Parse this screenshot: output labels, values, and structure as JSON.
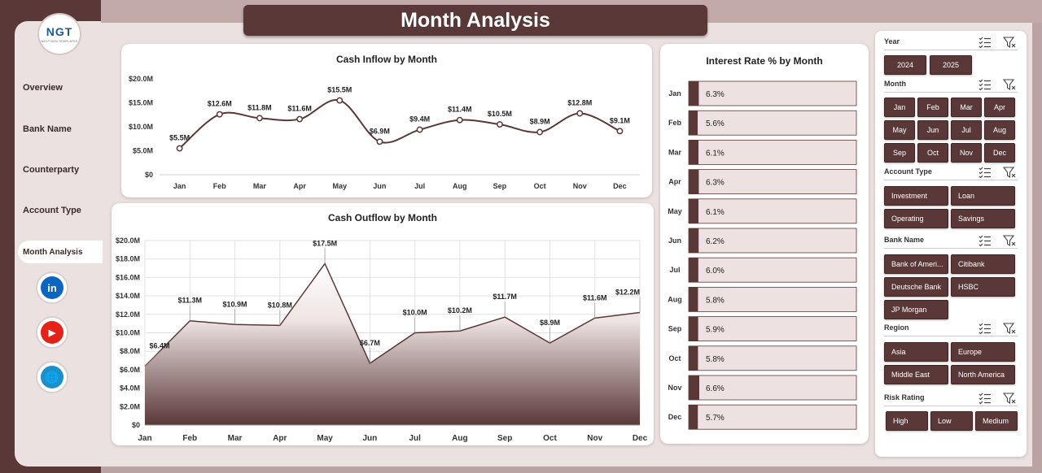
{
  "page": {
    "title": "Month Analysis"
  },
  "logo": {
    "text": "NGT",
    "subtext": "NEXT GEN TEMPLATES"
  },
  "sidebar": {
    "items": [
      {
        "label": "Overview"
      },
      {
        "label": "Bank Name"
      },
      {
        "label": "Counterparty"
      },
      {
        "label": "Account Type"
      }
    ],
    "active": "Month Analysis",
    "social": [
      {
        "icon": "linkedin-icon",
        "text": "in"
      },
      {
        "icon": "youtube-icon",
        "text": "▶"
      },
      {
        "icon": "globe-icon",
        "text": "🌐"
      }
    ]
  },
  "chart_data": [
    {
      "type": "line",
      "title": "Cash Inflow by Month",
      "categories": [
        "Jan",
        "Feb",
        "Mar",
        "Apr",
        "May",
        "Jun",
        "Jul",
        "Aug",
        "Sep",
        "Oct",
        "Nov",
        "Dec"
      ],
      "values": [
        5.5,
        12.6,
        11.8,
        11.6,
        15.5,
        6.9,
        9.4,
        11.4,
        10.5,
        8.9,
        12.8,
        9.1
      ],
      "labels": [
        "$5.5M",
        "$12.6M",
        "$11.8M",
        "$11.6M",
        "$15.5M",
        "$6.9M",
        "$9.4M",
        "$11.4M",
        "$10.5M",
        "$8.9M",
        "$12.8M",
        "$9.1M"
      ],
      "yticks": [
        "$0",
        "$5.0M",
        "$10.0M",
        "$15.0M",
        "$20.0M"
      ],
      "ylim": [
        0,
        20
      ],
      "color": "#5a3838"
    },
    {
      "type": "area",
      "title": "Cash Outflow by Month",
      "categories": [
        "Jan",
        "Feb",
        "Mar",
        "Apr",
        "May",
        "Jun",
        "Jul",
        "Aug",
        "Sep",
        "Oct",
        "Nov",
        "Dec"
      ],
      "values": [
        6.4,
        11.3,
        10.9,
        10.8,
        17.5,
        6.7,
        10.0,
        10.2,
        11.7,
        8.9,
        11.6,
        12.2
      ],
      "labels": [
        "$6.4M",
        "$11.3M",
        "$10.9M",
        "$10.8M",
        "$17.5M",
        "$6.7M",
        "$10.0M",
        "$10.2M",
        "$11.7M",
        "$8.9M",
        "$11.6M",
        "$12.2M"
      ],
      "yticks": [
        "$0",
        "$2.0M",
        "$4.0M",
        "$6.0M",
        "$8.0M",
        "$10.0M",
        "$12.0M",
        "$14.0M",
        "$16.0M",
        "$18.0M",
        "$20.0M"
      ],
      "ylim": [
        0,
        20
      ],
      "color": "#5a3838"
    },
    {
      "type": "bar",
      "orientation": "horizontal",
      "title": "Interest Rate % by Month",
      "categories": [
        "Jan",
        "Feb",
        "Mar",
        "Apr",
        "May",
        "Jun",
        "Jul",
        "Aug",
        "Sep",
        "Oct",
        "Nov",
        "Dec"
      ],
      "values": [
        6.3,
        5.6,
        6.1,
        6.3,
        6.1,
        6.2,
        6.0,
        5.8,
        5.9,
        5.8,
        6.6,
        5.7
      ],
      "labels": [
        "6.3%",
        "5.6%",
        "6.1%",
        "6.3%",
        "6.1%",
        "6.2%",
        "6.0%",
        "5.8%",
        "5.9%",
        "5.8%",
        "6.6%",
        "5.7%"
      ],
      "color": "#5a3838",
      "track_color": "#ede1e1"
    }
  ],
  "slicers": {
    "year": {
      "title": "Year",
      "options": [
        "2024",
        "2025"
      ]
    },
    "month": {
      "title": "Month",
      "options": [
        "Jan",
        "Feb",
        "Mar",
        "Apr",
        "May",
        "Jun",
        "Jul",
        "Aug",
        "Sep",
        "Oct",
        "Nov",
        "Dec"
      ]
    },
    "account_type": {
      "title": "Account Type",
      "options": [
        "Investment",
        "Loan",
        "Operating",
        "Savings"
      ]
    },
    "bank_name": {
      "title": "Bank Name",
      "options": [
        "Bank of Ameri...",
        "Citibank",
        "Deutsche Bank",
        "HSBC",
        "JP Morgan"
      ]
    },
    "region": {
      "title": "Region",
      "options": [
        "Asia",
        "Europe",
        "Middle East",
        "North America"
      ]
    },
    "risk_rating": {
      "title": "Risk Rating",
      "options": [
        "High",
        "Low",
        "Medium"
      ]
    }
  }
}
